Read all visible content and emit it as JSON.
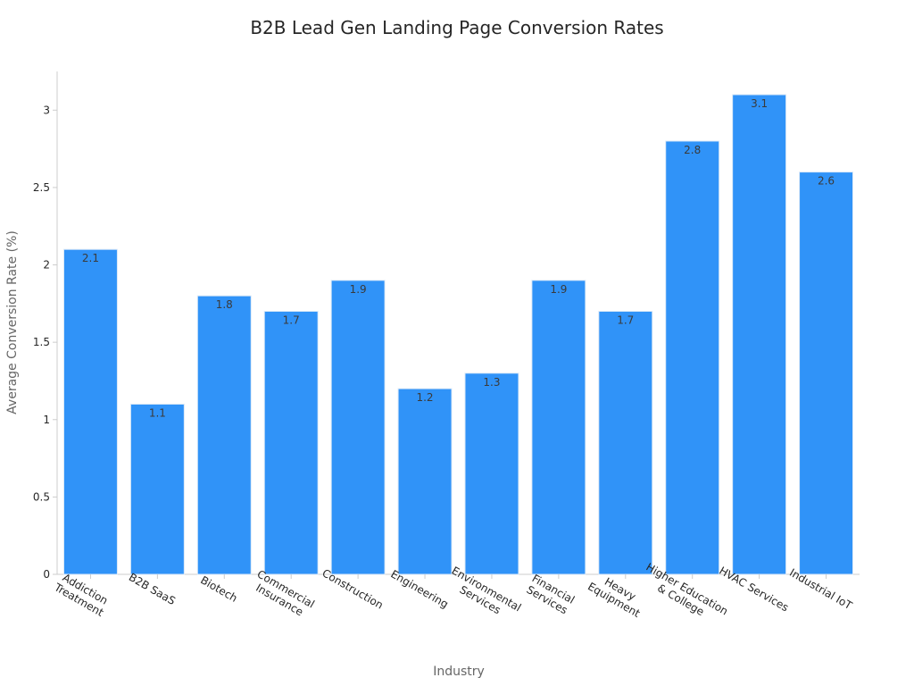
{
  "chart_data": {
    "type": "bar",
    "title": "B2B Lead Gen Landing Page Conversion Rates",
    "xlabel": "Industry",
    "ylabel": "Average Conversion Rate (%)",
    "categories": [
      [
        "Addiction",
        "Treatment"
      ],
      [
        "B2B SaaS"
      ],
      [
        "Biotech"
      ],
      [
        "Commercial",
        "Insurance"
      ],
      [
        "Construction"
      ],
      [
        "Engineering"
      ],
      [
        "Environmental",
        "Services"
      ],
      [
        "Financial",
        "Services"
      ],
      [
        "Heavy",
        "Equipment"
      ],
      [
        "Higher Education",
        "& College"
      ],
      [
        "HVAC Services"
      ],
      [
        "Industrial IoT"
      ]
    ],
    "values": [
      2.1,
      1.1,
      1.8,
      1.7,
      1.9,
      1.2,
      1.3,
      1.9,
      1.7,
      2.8,
      3.1,
      2.6
    ],
    "yticks": [
      "0",
      "0.5",
      "1",
      "1.5",
      "2",
      "2.5",
      "3"
    ],
    "ylim": [
      0,
      3.25
    ],
    "bar_color": "#3093f8",
    "grid": false,
    "legend": "none"
  }
}
